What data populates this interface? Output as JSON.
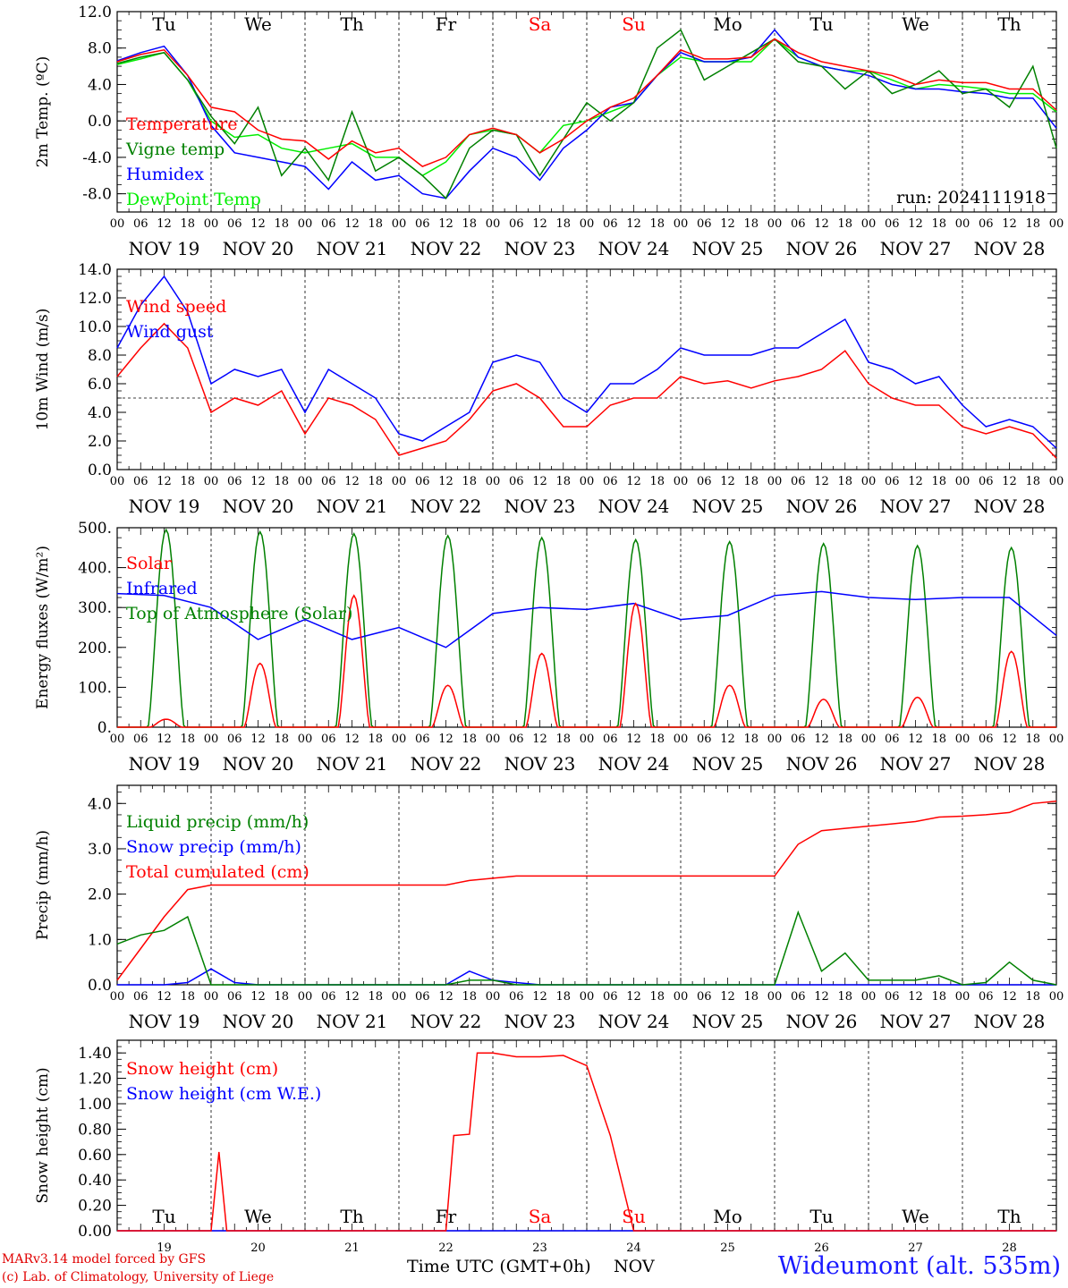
{
  "chart_data": [
    {
      "type": "line",
      "ylabel": "2m Temp. (ºC)",
      "ylim": [
        -10,
        12
      ],
      "yticks": [
        "12.0",
        "8.0",
        "4.0",
        "0.0",
        "-4.0",
        "-8.0"
      ],
      "ytick_values": [
        12,
        8,
        4,
        0,
        -4,
        -8
      ],
      "reference_line": 0,
      "run_label": "run: 2024111918",
      "x_hours": [
        0,
        6,
        12,
        18,
        24,
        30,
        36,
        42,
        48,
        54,
        60,
        66,
        72,
        78,
        84,
        90,
        96,
        102,
        108,
        114,
        120,
        126,
        132,
        138,
        144,
        150,
        156,
        162,
        168,
        174,
        180,
        186,
        192,
        198,
        204,
        210,
        216,
        222,
        228,
        234,
        240
      ],
      "series": [
        {
          "name": "Temperature",
          "color": "#ff0000",
          "values": [
            6.5,
            7.3,
            7.8,
            5,
            1.5,
            1,
            -1,
            -2,
            -2.2,
            -4.2,
            -2.2,
            -3.5,
            -3,
            -5,
            -4,
            -1.5,
            -0.8,
            -1.5,
            -3.5,
            -2,
            0,
            1.5,
            2.5,
            5,
            7.8,
            6.8,
            6.8,
            7,
            9,
            7.5,
            6.5,
            6,
            5.5,
            5,
            4,
            4.5,
            4.2,
            4.2,
            3.5,
            3.5,
            1.2
          ]
        },
        {
          "name": "Vigne temp",
          "color": "#008000",
          "values": [
            6.3,
            7,
            7.5,
            4.5,
            0.5,
            -2.5,
            1.5,
            -6,
            -3,
            -6.5,
            1,
            -5.5,
            -4,
            -6,
            -8.5,
            -3,
            -1,
            -1.5,
            -6,
            -2,
            2,
            0,
            2,
            8,
            10,
            4.5,
            6,
            7.5,
            9,
            6.5,
            6,
            3.5,
            5.5,
            3,
            4,
            5.5,
            3,
            3.5,
            1.5,
            6,
            -3
          ]
        },
        {
          "name": "Humidex",
          "color": "#0000ff",
          "values": [
            6.6,
            7.5,
            8.2,
            5,
            -0.5,
            -3.5,
            -4,
            -4.5,
            -5,
            -7.5,
            -4.5,
            -6.5,
            -6,
            -8,
            -8.5,
            -5.5,
            -3,
            -4,
            -6.5,
            -3,
            -1,
            1.5,
            2,
            5,
            7.5,
            6.5,
            6.5,
            7,
            10,
            7,
            6,
            5.5,
            5,
            4,
            3.5,
            3.5,
            3.2,
            3,
            2.5,
            2.5,
            -0.8
          ]
        },
        {
          "name": "DewPoint Temp",
          "color": "#00ee00",
          "values": [
            6.2,
            6.8,
            7.5,
            4.5,
            0,
            -1.8,
            -1.5,
            -3,
            -3.5,
            -3,
            -2.5,
            -4,
            -4,
            -6,
            -4.5,
            -1.5,
            -1,
            -1.5,
            -3.5,
            -0.5,
            0,
            1,
            2,
            5,
            7,
            6.5,
            6.5,
            6.5,
            9,
            7,
            6,
            5.5,
            5.5,
            4.5,
            3.5,
            4,
            3.8,
            3.5,
            3,
            3,
            1
          ]
        }
      ]
    },
    {
      "type": "line",
      "ylabel": "10m Wind (m/s)",
      "ylim": [
        0,
        14
      ],
      "yticks": [
        "14.0",
        "12.0",
        "10.0",
        "8.0",
        "6.0",
        "4.0",
        "2.0",
        "0.0"
      ],
      "ytick_values": [
        14,
        12,
        10,
        8,
        6,
        4,
        2,
        0
      ],
      "reference_line": 5,
      "x_hours": [
        0,
        6,
        12,
        18,
        24,
        30,
        36,
        42,
        48,
        54,
        60,
        66,
        72,
        78,
        84,
        90,
        96,
        102,
        108,
        114,
        120,
        126,
        132,
        138,
        144,
        150,
        156,
        162,
        168,
        174,
        180,
        186,
        192,
        198,
        204,
        210,
        216,
        222,
        228,
        234,
        240
      ],
      "series": [
        {
          "name": "Wind speed",
          "color": "#ff0000",
          "values": [
            6.5,
            8.5,
            10.2,
            8.5,
            4,
            5,
            4.5,
            5.5,
            2.5,
            5,
            4.5,
            3.5,
            1,
            1.5,
            2,
            3.5,
            5.5,
            6,
            5,
            3,
            3,
            4.5,
            5,
            5,
            6.5,
            6,
            6.2,
            5.7,
            6.2,
            6.5,
            7,
            8.3,
            6,
            5,
            4.5,
            4.5,
            3,
            2.5,
            3,
            2.5,
            0.8
          ]
        },
        {
          "name": "Wind gust",
          "color": "#0000ff",
          "values": [
            8.5,
            11.5,
            13.5,
            11,
            6,
            7,
            6.5,
            7,
            4,
            7,
            6,
            5,
            2.5,
            2,
            3,
            4,
            7.5,
            8,
            7.5,
            5,
            4,
            6,
            6,
            7,
            8.5,
            8,
            8,
            8,
            8.5,
            8.5,
            9.5,
            10.5,
            7.5,
            7,
            6,
            6.5,
            4.5,
            3,
            3.5,
            3,
            1.5
          ]
        }
      ]
    },
    {
      "type": "line",
      "ylabel": "Energy fluxes (W/m²)",
      "ylim": [
        0,
        500
      ],
      "yticks": [
        "500.",
        "400.",
        "300.",
        "200.",
        "100.",
        "0."
      ],
      "ytick_values": [
        500,
        400,
        300,
        200,
        100,
        0
      ],
      "series": [
        {
          "name": "Solar",
          "color": "#ff0000",
          "daily_peaks": [
            20,
            160,
            330,
            105,
            185,
            310,
            105,
            70,
            75,
            190
          ]
        },
        {
          "name": "Infrared",
          "color": "#0000ff",
          "x_hours": [
            0,
            12,
            24,
            36,
            48,
            60,
            72,
            84,
            96,
            108,
            120,
            132,
            144,
            156,
            168,
            180,
            192,
            204,
            216,
            228,
            240
          ],
          "values": [
            335,
            330,
            300,
            220,
            270,
            220,
            250,
            200,
            285,
            300,
            295,
            310,
            270,
            280,
            330,
            340,
            325,
            320,
            325,
            325,
            230
          ]
        },
        {
          "name": "Top of Atmosphere (Solar)",
          "color": "#008000",
          "daily_peaks": [
            495,
            490,
            485,
            480,
            475,
            470,
            465,
            460,
            455,
            450
          ]
        }
      ]
    },
    {
      "type": "line",
      "ylabel": "Precip (mm/h)",
      "ylim": [
        0,
        4.4
      ],
      "yticks": [
        "4.0",
        "3.0",
        "2.0",
        "1.0",
        "0.0"
      ],
      "ytick_values": [
        4,
        3,
        2,
        1,
        0
      ],
      "x_hours": [
        0,
        6,
        12,
        18,
        24,
        30,
        36,
        42,
        48,
        54,
        60,
        66,
        72,
        78,
        84,
        90,
        96,
        102,
        108,
        114,
        120,
        126,
        132,
        138,
        144,
        150,
        156,
        162,
        168,
        174,
        180,
        186,
        192,
        198,
        204,
        210,
        216,
        222,
        228,
        234,
        240
      ],
      "series": [
        {
          "name": "Liquid precip (mm/h)",
          "color": "#008000",
          "values": [
            0.9,
            1.1,
            1.2,
            1.5,
            0,
            0,
            0,
            0,
            0,
            0,
            0,
            0,
            0,
            0,
            0,
            0.1,
            0.1,
            0,
            0,
            0,
            0,
            0,
            0,
            0,
            0,
            0,
            0,
            0,
            0,
            1.6,
            0.3,
            0.7,
            0.1,
            0.1,
            0.1,
            0.2,
            0,
            0.05,
            0.5,
            0.1,
            0
          ]
        },
        {
          "name": "Snow precip (mm/h)",
          "color": "#0000ff",
          "values": [
            0,
            0,
            0,
            0.05,
            0.35,
            0.05,
            0,
            0,
            0,
            0,
            0,
            0,
            0,
            0,
            0,
            0.3,
            0.1,
            0.05,
            0,
            0,
            0,
            0,
            0,
            0,
            0,
            0,
            0,
            0,
            0,
            0,
            0,
            0,
            0,
            0,
            0,
            0,
            0,
            0,
            0,
            0,
            0
          ]
        },
        {
          "name": "Total cumulated (cm)",
          "color": "#ff0000",
          "values": [
            0.1,
            0.8,
            1.5,
            2.1,
            2.2,
            2.2,
            2.2,
            2.2,
            2.2,
            2.2,
            2.2,
            2.2,
            2.2,
            2.2,
            2.2,
            2.3,
            2.35,
            2.4,
            2.4,
            2.4,
            2.4,
            2.4,
            2.4,
            2.4,
            2.4,
            2.4,
            2.4,
            2.4,
            2.4,
            3.1,
            3.4,
            3.45,
            3.5,
            3.55,
            3.6,
            3.7,
            3.72,
            3.75,
            3.8,
            4.0,
            4.05
          ]
        }
      ]
    },
    {
      "type": "line",
      "ylabel": "Snow height (cm)",
      "ylim": [
        0,
        1.5
      ],
      "yticks": [
        "1.40",
        "1.20",
        "1.00",
        "0.80",
        "0.60",
        "0.40",
        "0.20",
        "0.00"
      ],
      "ytick_values": [
        1.4,
        1.2,
        1.0,
        0.8,
        0.6,
        0.4,
        0.2,
        0
      ],
      "x_hours": [
        0,
        6,
        12,
        18,
        24,
        26,
        28,
        30,
        36,
        42,
        48,
        54,
        60,
        66,
        72,
        78,
        84,
        86,
        90,
        92,
        96,
        102,
        108,
        114,
        120,
        126,
        132,
        138,
        144,
        150,
        156,
        162,
        168,
        174,
        180,
        186,
        192,
        198,
        204,
        210,
        216,
        222,
        228,
        234,
        240
      ],
      "series": [
        {
          "name": "Snow height (cm)",
          "color": "#ff0000",
          "values": [
            0,
            0,
            0,
            0,
            0,
            0.62,
            0,
            0,
            0,
            0,
            0,
            0,
            0,
            0,
            0,
            0,
            0,
            0.75,
            0.76,
            1.4,
            1.4,
            1.37,
            1.37,
            1.38,
            1.3,
            0.75,
            0,
            0,
            0,
            0,
            0,
            0,
            0,
            0,
            0,
            0,
            0,
            0,
            0,
            0,
            0,
            0,
            0,
            0,
            0
          ]
        },
        {
          "name": "Snow height (cm W.E.)",
          "color": "#0000ff",
          "values": [
            0,
            0,
            0,
            0,
            0,
            0,
            0,
            0,
            0,
            0,
            0,
            0,
            0,
            0,
            0,
            0,
            0,
            0,
            0,
            0,
            0,
            0,
            0,
            0,
            0,
            0,
            0,
            0,
            0,
            0,
            0,
            0,
            0,
            0,
            0,
            0,
            0,
            0,
            0,
            0,
            0,
            0,
            0,
            0,
            0
          ]
        }
      ]
    }
  ],
  "x_axis": {
    "hour_ticks": [
      "00",
      "06",
      "12",
      "18"
    ],
    "end_tick": "00",
    "date_labels": [
      "NOV 19",
      "NOV 20",
      "NOV 21",
      "NOV 22",
      "NOV 23",
      "NOV 24",
      "NOV 25",
      "NOV 26",
      "NOV 27",
      "NOV 28"
    ],
    "day_numbers": [
      "19",
      "20",
      "21",
      "22",
      "23",
      "24",
      "25",
      "26",
      "27",
      "28"
    ],
    "weekdays": [
      {
        "label": "Tu",
        "color": "#000000"
      },
      {
        "label": "We",
        "color": "#000000"
      },
      {
        "label": "Th",
        "color": "#000000"
      },
      {
        "label": "Fr",
        "color": "#000000"
      },
      {
        "label": "Sa",
        "color": "#ff0000"
      },
      {
        "label": "Su",
        "color": "#ff0000"
      },
      {
        "label": "Mo",
        "color": "#000000"
      },
      {
        "label": "Tu",
        "color": "#000000"
      },
      {
        "label": "We",
        "color": "#000000"
      },
      {
        "label": "Th",
        "color": "#000000"
      }
    ],
    "title": "Time UTC (GMT+0h)",
    "month": "NOV"
  },
  "footer": {
    "credit_line1": "MARv3.14 model forced by GFS",
    "credit_line2": "(c) Lab. of Climatology, University of Liege",
    "station": "Wideumont (alt. 535m)"
  }
}
